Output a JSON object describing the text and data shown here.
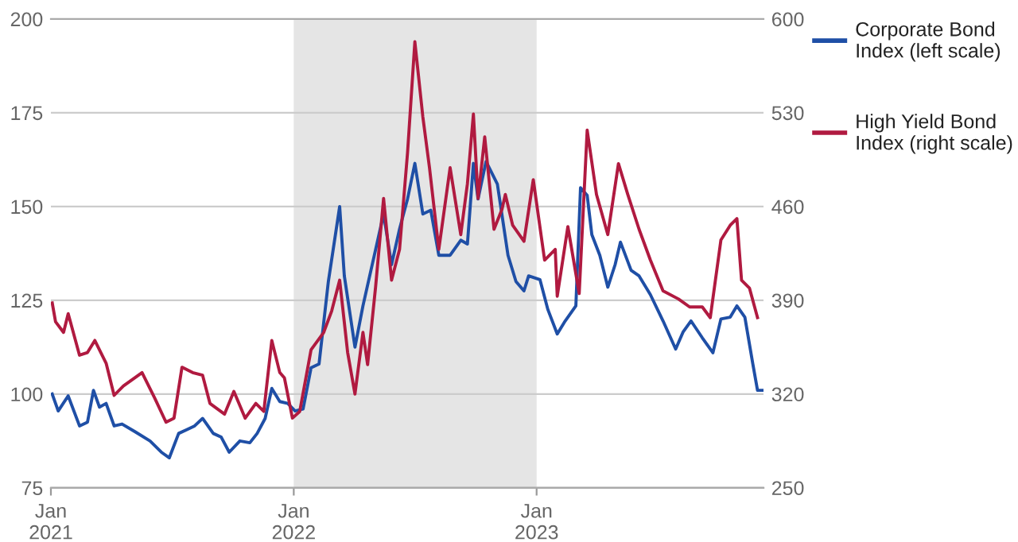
{
  "chart_data": {
    "type": "line",
    "xlim": [
      "2021-01-01",
      "2023-12-08"
    ],
    "xticks": [
      {
        "value": "2021-01-01",
        "label": "Jan\n2021"
      },
      {
        "value": "2022-01-01",
        "label": "Jan\n2022"
      },
      {
        "value": "2023-01-01",
        "label": "Jan\n2023"
      }
    ],
    "ylim": [
      75,
      200
    ],
    "yticks": [
      75,
      100,
      125,
      150,
      175,
      200
    ],
    "y2lim": [
      250,
      600
    ],
    "y2ticks": [
      250,
      320,
      390,
      460,
      530,
      600
    ],
    "grid": "y",
    "legend": "right",
    "bands": [
      {
        "axis": "x",
        "from": "2022-01-01",
        "to": "2023-01-01",
        "color": "#e5e5e5"
      }
    ],
    "series": [
      {
        "name": "Corporate Bond Index (left scale)",
        "color": "#1f4fa6",
        "axis": "y",
        "x": [
          "2021-01-03",
          "2021-01-12",
          "2021-01-27",
          "2021-02-13",
          "2021-02-25",
          "2021-03-06",
          "2021-03-15",
          "2021-03-25",
          "2021-04-06",
          "2021-04-18",
          "2021-05-07",
          "2021-05-30",
          "2021-06-16",
          "2021-06-28",
          "2021-07-12",
          "2021-07-24",
          "2021-08-05",
          "2021-08-17",
          "2021-09-02",
          "2021-09-14",
          "2021-09-26",
          "2021-10-12",
          "2021-10-27",
          "2021-11-07",
          "2021-11-19",
          "2021-11-29",
          "2021-12-11",
          "2021-12-23",
          "2022-01-03",
          "2022-01-15",
          "2022-01-27",
          "2022-02-08",
          "2022-02-22",
          "2022-03-11",
          "2022-03-18",
          "2022-04-03",
          "2022-04-15",
          "2022-04-27",
          "2022-05-04",
          "2022-05-16",
          "2022-05-28",
          "2022-06-09",
          "2022-06-21",
          "2022-07-02",
          "2022-07-14",
          "2022-07-26",
          "2022-08-07",
          "2022-08-24",
          "2022-09-09",
          "2022-09-19",
          "2022-09-28",
          "2022-10-05",
          "2022-10-17",
          "2022-11-03",
          "2022-11-19",
          "2022-12-01",
          "2022-12-13",
          "2022-12-20",
          "2023-01-06",
          "2023-01-18",
          "2023-02-01",
          "2023-02-13",
          "2023-03-01",
          "2023-03-08",
          "2023-03-18",
          "2023-03-25",
          "2023-04-06",
          "2023-04-18",
          "2023-04-29",
          "2023-05-07",
          "2023-05-23",
          "2023-06-04",
          "2023-06-21",
          "2023-07-10",
          "2023-07-29",
          "2023-08-09",
          "2023-08-21",
          "2023-09-07",
          "2023-09-23",
          "2023-10-05",
          "2023-10-19",
          "2023-10-29",
          "2023-11-10",
          "2023-11-22",
          "2023-11-29",
          "2023-12-06"
        ],
        "values": [
          100,
          95.5,
          99.5,
          91.5,
          92.5,
          101,
          96.5,
          97.5,
          91.5,
          92,
          90,
          87.5,
          84.5,
          83,
          89.5,
          90.5,
          91.5,
          93.5,
          89.5,
          88.5,
          84.5,
          87.5,
          87,
          89.5,
          93.5,
          101.5,
          98,
          97.5,
          95.5,
          96,
          107,
          108,
          130,
          150,
          131.5,
          112.5,
          123.5,
          133,
          138.5,
          148,
          134.5,
          144,
          152,
          161.5,
          148,
          149,
          137,
          137,
          141,
          140,
          161.5,
          152,
          162,
          156,
          137,
          130,
          127.5,
          131.5,
          130.5,
          122.5,
          116,
          119.5,
          123.5,
          155,
          153,
          142.5,
          137,
          128.5,
          134.5,
          140.5,
          133,
          131.5,
          126.5,
          119.5,
          112,
          116.5,
          119.5,
          115,
          111,
          120,
          120.5,
          123.5,
          120.5,
          108,
          101,
          101
        ]
      },
      {
        "name": "High Yield Bond Index (right scale)",
        "color": "#b01a40",
        "axis": "y2",
        "x": [
          "2021-01-03",
          "2021-01-08",
          "2021-01-20",
          "2021-01-27",
          "2021-02-13",
          "2021-02-25",
          "2021-03-08",
          "2021-03-25",
          "2021-04-06",
          "2021-04-20",
          "2021-05-18",
          "2021-06-06",
          "2021-06-23",
          "2021-07-05",
          "2021-07-17",
          "2021-08-02",
          "2021-08-17",
          "2021-08-28",
          "2021-09-19",
          "2021-10-03",
          "2021-10-20",
          "2021-11-05",
          "2021-11-17",
          "2021-11-29",
          "2021-12-11",
          "2021-12-18",
          "2021-12-30",
          "2022-01-10",
          "2022-01-27",
          "2022-02-15",
          "2022-02-27",
          "2022-03-11",
          "2022-03-23",
          "2022-04-03",
          "2022-04-15",
          "2022-04-22",
          "2022-05-04",
          "2022-05-16",
          "2022-05-28",
          "2022-06-09",
          "2022-06-21",
          "2022-07-02",
          "2022-07-14",
          "2022-07-24",
          "2022-08-07",
          "2022-08-24",
          "2022-09-09",
          "2022-09-19",
          "2022-09-28",
          "2022-10-05",
          "2022-10-15",
          "2022-10-29",
          "2022-11-10",
          "2022-11-15",
          "2022-11-26",
          "2022-12-13",
          "2022-12-27",
          "2023-01-13",
          "2023-01-29",
          "2023-02-01",
          "2023-02-17",
          "2023-03-06",
          "2023-03-18",
          "2023-04-01",
          "2023-04-18",
          "2023-05-04",
          "2023-05-18",
          "2023-06-04",
          "2023-06-21",
          "2023-07-10",
          "2023-08-02",
          "2023-08-19",
          "2023-09-07",
          "2023-09-19",
          "2023-10-05",
          "2023-10-19",
          "2023-10-29",
          "2023-11-05",
          "2023-11-17",
          "2023-11-29"
        ],
        "values": [
          388,
          374,
          366,
          380,
          349,
          351,
          360,
          343,
          319,
          326,
          336,
          317,
          299,
          302,
          340,
          336,
          334,
          313,
          305,
          322,
          302,
          313,
          307,
          360,
          336,
          332,
          302,
          307,
          353,
          366,
          382,
          405,
          351,
          320,
          366,
          342,
          400,
          466,
          405,
          428,
          500,
          583,
          527,
          489,
          428,
          489,
          439,
          477,
          529,
          466,
          512,
          443,
          458,
          469,
          446,
          434,
          480,
          420,
          428,
          393,
          445,
          395,
          517,
          469,
          439,
          492,
          469,
          443,
          420,
          397,
          391,
          385,
          385,
          377,
          435,
          446,
          451,
          405,
          399,
          377
        ]
      }
    ]
  }
}
